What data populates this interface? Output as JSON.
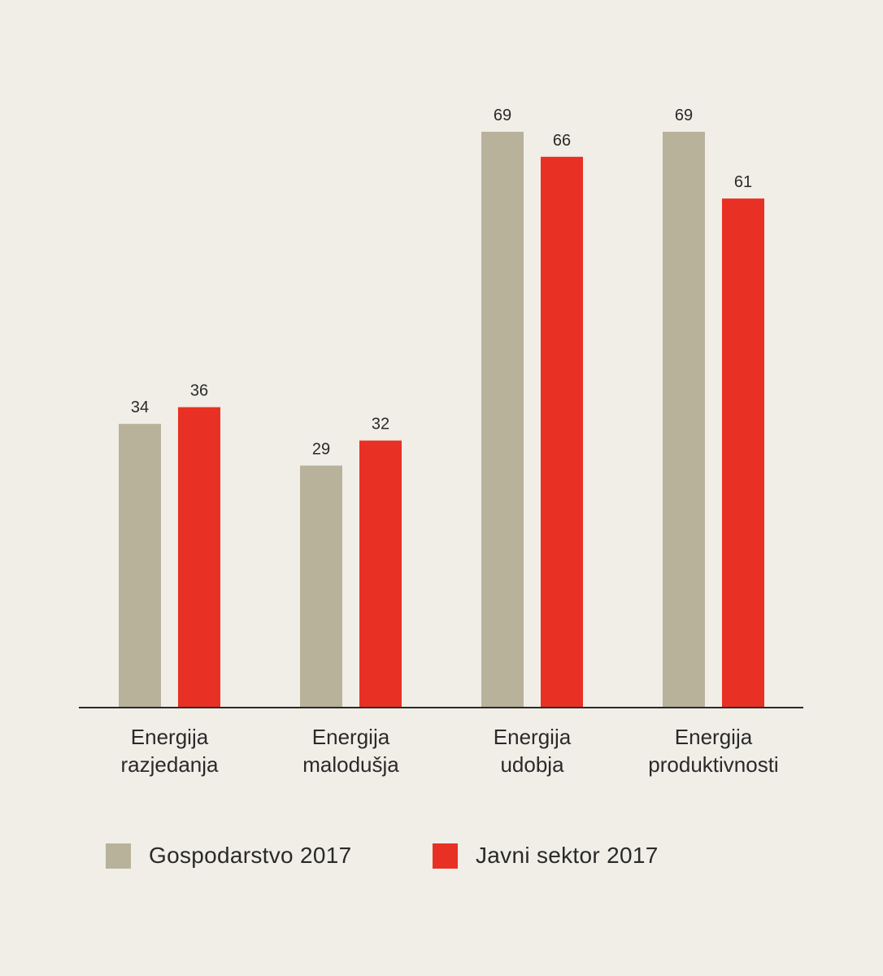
{
  "chart_data": {
    "type": "bar",
    "title": "",
    "xlabel": "",
    "ylabel": "",
    "ylim": [
      0,
      69
    ],
    "grid": false,
    "categories": [
      [
        "Energija",
        "razjedanja"
      ],
      [
        "Energija",
        "malodušja"
      ],
      [
        "Energija",
        "udobja"
      ],
      [
        "Energija",
        "produktivnosti"
      ]
    ],
    "series": [
      {
        "name": "Gospodarstvo 2017",
        "color": "#b9b29b",
        "values": [
          34,
          29,
          69,
          69
        ]
      },
      {
        "name": "Javni sektor 2017",
        "color": "#e83124",
        "values": [
          36,
          32,
          66,
          61
        ]
      }
    ],
    "legend_position": "bottom-left"
  }
}
